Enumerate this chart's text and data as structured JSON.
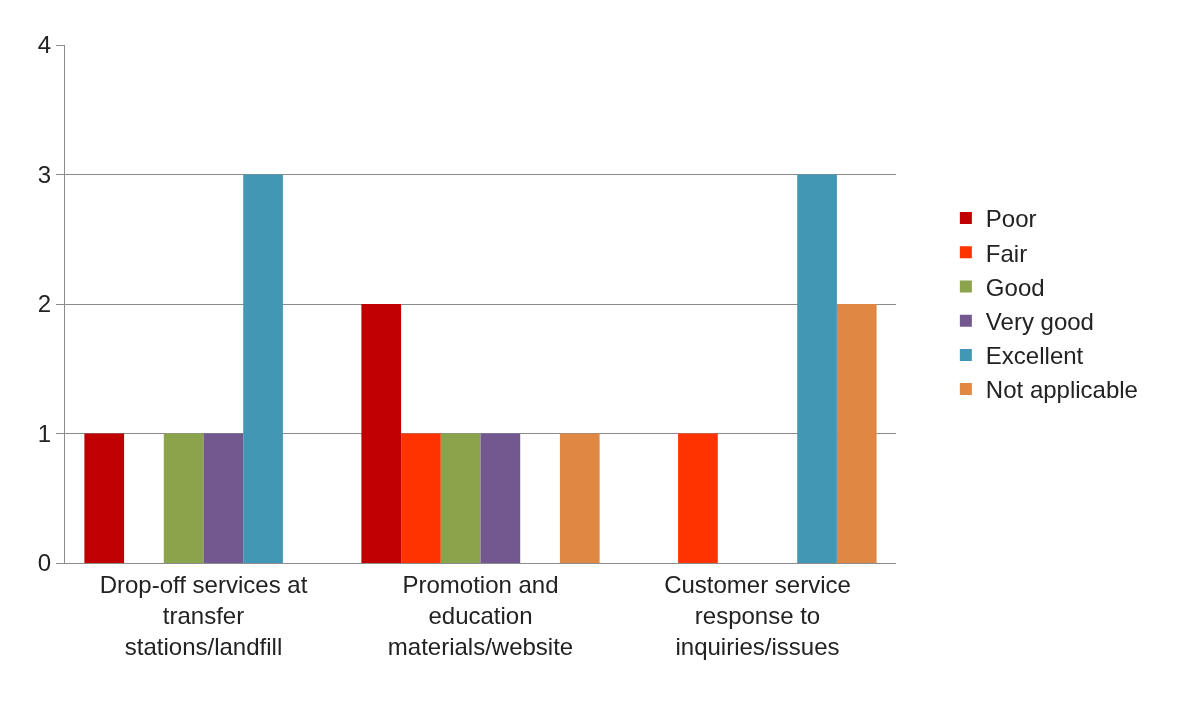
{
  "chart_data": {
    "type": "bar",
    "categories": [
      "Drop-off services at transfer stations/landfill",
      "Promotion and education materials/website",
      "Customer service response to inquiries/issues"
    ],
    "series": [
      {
        "name": "Poor",
        "color": "#c00000",
        "values": [
          1,
          2,
          0
        ]
      },
      {
        "name": "Fair",
        "color": "#ff3300",
        "values": [
          0,
          1,
          1
        ]
      },
      {
        "name": "Good",
        "color": "#8ba44c",
        "values": [
          1,
          1,
          0
        ]
      },
      {
        "name": "Very good",
        "color": "#73588f",
        "values": [
          1,
          1,
          0
        ]
      },
      {
        "name": "Excellent",
        "color": "#4298b4",
        "values": [
          3,
          0,
          3
        ]
      },
      {
        "name": "Not applicable",
        "color": "#df8844",
        "values": [
          0,
          1,
          2
        ]
      }
    ],
    "ylim": [
      0,
      4
    ],
    "yticks": [
      0,
      1,
      2,
      3,
      4
    ],
    "grid": "y",
    "legend": "right"
  }
}
